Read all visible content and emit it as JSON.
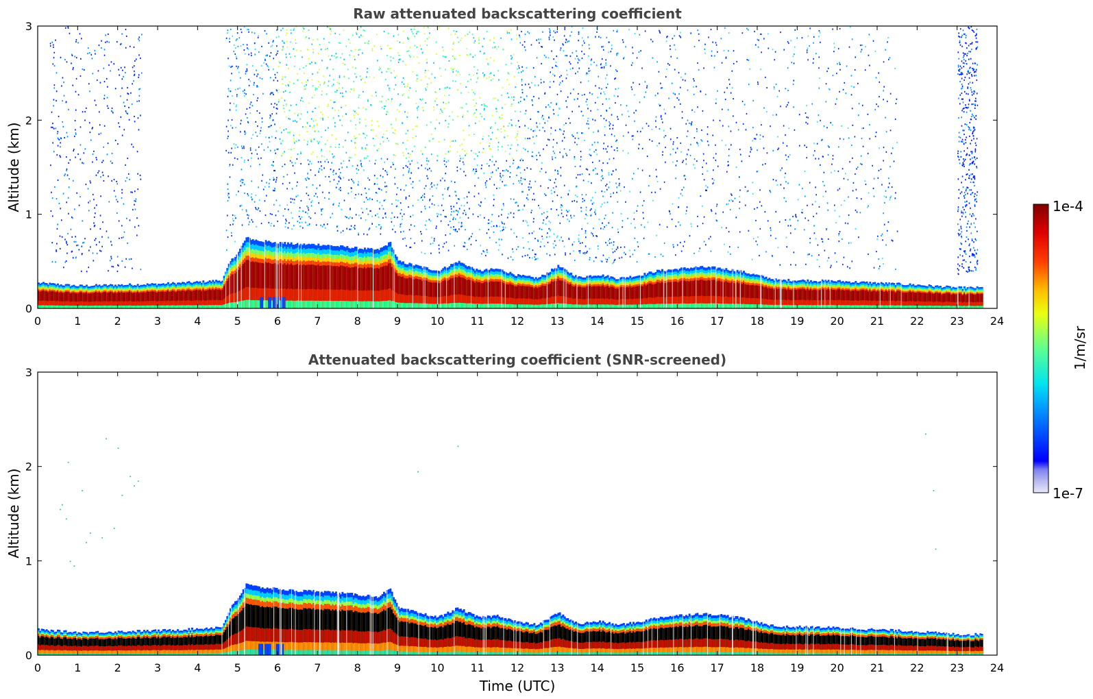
{
  "chart_data": [
    {
      "type": "heatmap",
      "id": "raw",
      "title": "Raw attenuated backscattering coefficient",
      "xlabel": "",
      "ylabel": "Altitude (km)",
      "xlim": [
        0,
        24
      ],
      "ylim": [
        0,
        3
      ],
      "xticks": [
        "0",
        "1",
        "2",
        "3",
        "4",
        "5",
        "6",
        "7",
        "8",
        "9",
        "10",
        "11",
        "12",
        "13",
        "14",
        "15",
        "16",
        "17",
        "18",
        "19",
        "20",
        "21",
        "22",
        "23",
        "24"
      ],
      "yticks": [
        "0",
        "1",
        "2",
        "3"
      ],
      "data_end_time": 23.6,
      "boundary_layer_top_km": [
        [
          0,
          0.27
        ],
        [
          1,
          0.24
        ],
        [
          2,
          0.25
        ],
        [
          3,
          0.26
        ],
        [
          4,
          0.28
        ],
        [
          4.6,
          0.3
        ],
        [
          4.8,
          0.5
        ],
        [
          5,
          0.6
        ],
        [
          5.2,
          0.75
        ],
        [
          5.5,
          0.72
        ],
        [
          6,
          0.7
        ],
        [
          6.5,
          0.68
        ],
        [
          7,
          0.68
        ],
        [
          7.5,
          0.66
        ],
        [
          8,
          0.64
        ],
        [
          8.5,
          0.62
        ],
        [
          8.8,
          0.7
        ],
        [
          9,
          0.5
        ],
        [
          9.5,
          0.45
        ],
        [
          10,
          0.4
        ],
        [
          10.5,
          0.5
        ],
        [
          11,
          0.4
        ],
        [
          11.5,
          0.42
        ],
        [
          12,
          0.35
        ],
        [
          12.5,
          0.32
        ],
        [
          13,
          0.45
        ],
        [
          13.5,
          0.33
        ],
        [
          14,
          0.36
        ],
        [
          14.5,
          0.32
        ],
        [
          15,
          0.35
        ],
        [
          15.5,
          0.4
        ],
        [
          16,
          0.42
        ],
        [
          16.5,
          0.44
        ],
        [
          17,
          0.43
        ],
        [
          17.5,
          0.4
        ],
        [
          18,
          0.35
        ],
        [
          18.5,
          0.3
        ],
        [
          19,
          0.3
        ],
        [
          20,
          0.29
        ],
        [
          21,
          0.27
        ],
        [
          22,
          0.25
        ],
        [
          23,
          0.22
        ],
        [
          23.6,
          0.22
        ]
      ],
      "noise_regions": [
        {
          "from": 0.3,
          "to": 2.6,
          "level": "low"
        },
        {
          "from": 4.7,
          "to": 14.5,
          "level": "high"
        },
        {
          "from": 14.5,
          "to": 21.5,
          "level": "medium"
        },
        {
          "from": 23.0,
          "to": 23.5,
          "level": "low"
        }
      ]
    },
    {
      "type": "heatmap",
      "id": "screened",
      "title": "Attenuated backscattering coefficient (SNR-screened)",
      "xlabel": "Time (UTC)",
      "ylabel": "Altitude (km)",
      "xlim": [
        0,
        24
      ],
      "ylim": [
        0,
        3
      ],
      "xticks": [
        "0",
        "1",
        "2",
        "3",
        "4",
        "5",
        "6",
        "7",
        "8",
        "9",
        "10",
        "11",
        "12",
        "13",
        "14",
        "15",
        "16",
        "17",
        "18",
        "19",
        "20",
        "21",
        "22",
        "23",
        "24"
      ],
      "yticks": [
        "0",
        "1",
        "2",
        "3"
      ],
      "data_end_time": 23.6
    }
  ],
  "colorbar": {
    "max_label": "1e-4",
    "min_label": "1e-7",
    "unit_label": "1/m/sr"
  }
}
